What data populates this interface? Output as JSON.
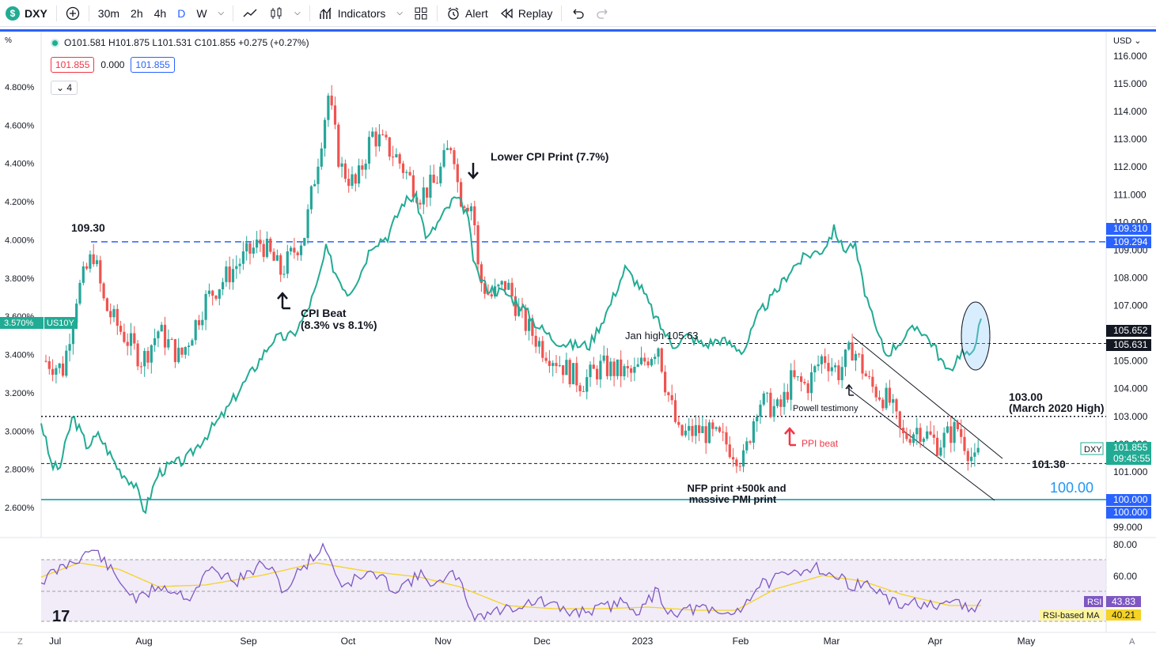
{
  "toolbar": {
    "symbol": "DXY",
    "intervals": [
      "30m",
      "2h",
      "4h",
      "D",
      "W"
    ],
    "indicators_label": "Indicators",
    "alert_label": "Alert",
    "replay_label": "Replay"
  },
  "legend": {
    "ohlc": "O101.581 H101.875 L101.531 C101.855 +0.275 (+0.27%)",
    "box1": "101.855",
    "spread": "0.000",
    "box2": "101.855",
    "collapse": "4"
  },
  "axis_left": {
    "unit": "%",
    "labels": [
      "4.800%",
      "4.600%",
      "4.400%",
      "4.200%",
      "4.000%",
      "3.800%",
      "3.600%",
      "3.400%",
      "3.200%",
      "3.000%",
      "2.800%",
      "2.600%"
    ],
    "us10y_value": "3.570%",
    "us10y_label": "US10Y"
  },
  "axis_right": {
    "currency": "USD",
    "labels": [
      "116.000",
      "115.000",
      "114.000",
      "113.000",
      "112.000",
      "111.000",
      "110.000",
      "109.000",
      "108.000",
      "107.000",
      "106.000",
      "105.000",
      "104.000",
      "103.000",
      "102.000",
      "101.000",
      "100.000",
      "99.000"
    ],
    "tags": [
      {
        "text": "109.310",
        "color": "#2962ff"
      },
      {
        "text": "109.294",
        "color": "#2962ff"
      },
      {
        "text": "105.652",
        "color": "#131722"
      },
      {
        "text": "105.631",
        "color": "#131722"
      },
      {
        "text": "101.855",
        "color": "#22ab94"
      },
      {
        "text": "09:45:55",
        "color": "#22ab94"
      },
      {
        "text": "100.000",
        "color": "#2962ff"
      },
      {
        "text": "100.000",
        "color": "#2962ff"
      }
    ],
    "dxy_label": "DXY"
  },
  "rsi_axis": {
    "labels": [
      "80.00",
      "60.00"
    ],
    "rsi_tag": "RSI",
    "rsi_value": "43.83",
    "ma_tag": "RSI-based MA",
    "ma_value": "40.21"
  },
  "time_axis": [
    "Jul",
    "Aug",
    "Sep",
    "Oct",
    "Nov",
    "Dec",
    "2023",
    "Feb",
    "Mar",
    "Apr",
    "May"
  ],
  "annotations": {
    "level_10930": "109.30",
    "lower_cpi": "Lower CPI Print (7.7%)",
    "cpi_beat_1": "CPI Beat",
    "cpi_beat_2": "(8.3% vs 8.1%)",
    "jan_high": "Jan high 105.63",
    "powell": "Powell testimony",
    "ppi_beat": "PPI beat",
    "nfp_1": "NFP print +500k and",
    "nfp_2": "massive PMI print",
    "level_103": "103.00",
    "level_103_note": "(March 2020 High)",
    "level_10130": "101.30",
    "level_100": "100.00"
  },
  "colors": {
    "up": "#26a69a",
    "down": "#ef5350",
    "yield": "#22ab94",
    "blue": "#2962ff",
    "rsi": "#7e57c2",
    "rsi_ma": "#f5d223"
  },
  "chart_data": {
    "type": "candlestick",
    "dxy_approx_path": [
      {
        "date": "Jul",
        "close": 105.0
      },
      {
        "date": "mid-Jul",
        "close": 108.5
      },
      {
        "date": "Aug",
        "close": 106.2
      },
      {
        "date": "Sep",
        "close": 109.0
      },
      {
        "date": "late-Sep",
        "close": 114.5
      },
      {
        "date": "Oct",
        "close": 112.0
      },
      {
        "date": "Nov",
        "close": 111.0
      },
      {
        "date": "Dec",
        "close": 105.0
      },
      {
        "date": "2023",
        "close": 103.5
      },
      {
        "date": "Feb",
        "close": 101.5
      },
      {
        "date": "Mar",
        "close": 105.0
      },
      {
        "date": "Apr",
        "close": 102.0
      },
      {
        "date": "mid-Apr",
        "close": 101.855
      }
    ],
    "us10y_approx_path": [
      {
        "date": "Jul",
        "yield": 3.0
      },
      {
        "date": "Aug",
        "yield": 2.6
      },
      {
        "date": "Sep",
        "yield": 3.2
      },
      {
        "date": "Oct",
        "yield": 3.8
      },
      {
        "date": "Nov",
        "yield": 4.2
      },
      {
        "date": "Dec",
        "yield": 3.5
      },
      {
        "date": "2023",
        "yield": 3.8
      },
      {
        "date": "Feb",
        "yield": 3.4
      },
      {
        "date": "Mar",
        "yield": 4.0
      },
      {
        "date": "Apr",
        "yield": 3.4
      },
      {
        "date": "mid-Apr",
        "yield": 3.57
      }
    ]
  }
}
